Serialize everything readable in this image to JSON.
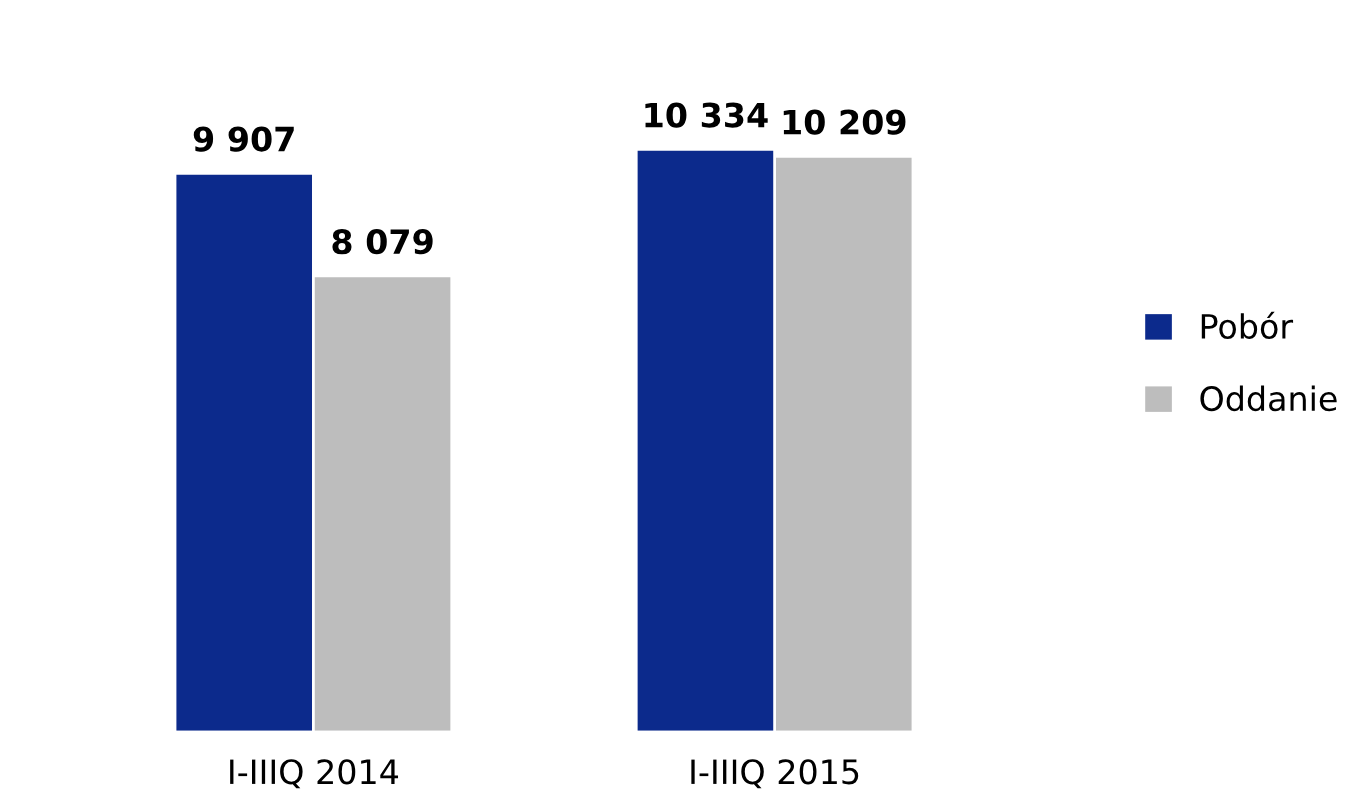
{
  "chart_data": {
    "type": "bar",
    "categories": [
      "I-IIIQ 2014",
      "I-IIIQ 2015"
    ],
    "series": [
      {
        "name": "Pobór",
        "color": "#0c2a8c",
        "values": [
          9907,
          10334
        ],
        "value_labels": [
          "9 907",
          "10 334"
        ]
      },
      {
        "name": "Oddanie",
        "color": "#bdbdbd",
        "values": [
          8079,
          10209
        ],
        "value_labels": [
          "8 079",
          "10 209"
        ]
      }
    ],
    "legend": "right",
    "tick_labels": "x",
    "grid": false
  }
}
